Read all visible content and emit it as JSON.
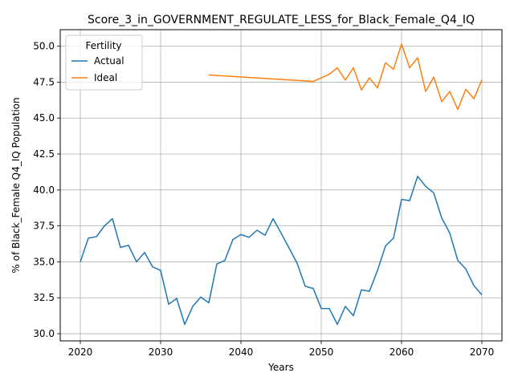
{
  "chart_data": {
    "type": "line",
    "title": "Score_3_in_GOVERNMENT_REGULATE_LESS_for_Black_Female_Q4_IQ",
    "xlabel": "Years",
    "ylabel": "% of Black_Female Q4_IQ Population",
    "xlim": [
      2017.5,
      2072.5
    ],
    "ylim": [
      29.5,
      51.15
    ],
    "xticks": [
      2020,
      2030,
      2040,
      2050,
      2060,
      2070
    ],
    "yticks": [
      30.0,
      32.5,
      35.0,
      37.5,
      40.0,
      42.5,
      45.0,
      47.5,
      50.0
    ],
    "grid": true,
    "legend": {
      "title": "Fertility",
      "placement": "upper-left"
    },
    "series": [
      {
        "name": "Actual",
        "color": "#1f77b4",
        "x": [
          2020,
          2021,
          2022,
          2023,
          2024,
          2025,
          2026,
          2027,
          2028,
          2029,
          2030,
          2031,
          2032,
          2033,
          2034,
          2035,
          2036,
          2037,
          2038,
          2039,
          2040,
          2041,
          2042,
          2043,
          2044,
          2045,
          2046,
          2047,
          2048,
          2049,
          2050,
          2051,
          2052,
          2053,
          2054,
          2055,
          2056,
          2057,
          2058,
          2059,
          2060,
          2061,
          2062,
          2063,
          2064,
          2065,
          2066,
          2067,
          2068,
          2069,
          2070
        ],
        "values": [
          35.0,
          36.65,
          36.75,
          37.5,
          38.0,
          36.0,
          36.15,
          35.0,
          35.65,
          34.65,
          34.4,
          32.05,
          32.45,
          30.65,
          31.9,
          32.55,
          32.15,
          34.85,
          35.1,
          36.55,
          36.9,
          36.7,
          37.2,
          36.85,
          38.0,
          37.0,
          35.95,
          34.9,
          33.3,
          33.15,
          31.75,
          31.75,
          30.65,
          31.9,
          31.25,
          33.05,
          32.95,
          34.4,
          36.1,
          36.65,
          39.35,
          39.25,
          40.95,
          40.25,
          39.8,
          38.05,
          37.0,
          35.1,
          34.5,
          33.35,
          32.7
        ]
      },
      {
        "name": "Ideal",
        "color": "#ff7f0e",
        "x": [
          2036,
          2049,
          2050,
          2051,
          2052,
          2053,
          2054,
          2055,
          2056,
          2057,
          2058,
          2059,
          2060,
          2061,
          2062,
          2063,
          2064,
          2065,
          2066,
          2067,
          2068,
          2069,
          2070
        ],
        "values": [
          48.0,
          47.55,
          47.8,
          48.05,
          48.5,
          47.65,
          48.5,
          46.95,
          47.8,
          47.1,
          48.85,
          48.4,
          50.15,
          48.5,
          49.2,
          46.85,
          47.85,
          46.15,
          46.85,
          45.6,
          47.0,
          46.35,
          47.65
        ]
      }
    ]
  }
}
